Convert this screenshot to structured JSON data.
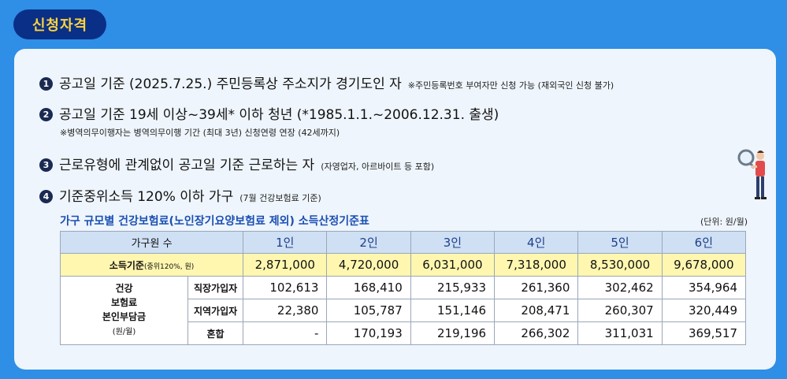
{
  "badge": "신청자격",
  "conditions": [
    {
      "num": "1",
      "text": "공고일 기준 (2025.7.25.) 주민등록상 주소지가 경기도인 자",
      "note": "※주민등록번호 부여자만 신청 가능 (재외국인 신청 불가)"
    },
    {
      "num": "2",
      "text": "공고일 기준 19세 이상~39세* 이하 청년 (*1985.1.1.~2006.12.31. 출생)",
      "subnote": "※병역의무이행자는 병역의무이행 기간 (최대 3년) 신청연령 연장 (42세까지)"
    },
    {
      "num": "3",
      "text": "근로유형에 관계없이 공고일 기준 근로하는 자",
      "note": "(자영업자, 아르바이트 등 포함)"
    },
    {
      "num": "4",
      "text": "기준중위소득 120% 이하 가구",
      "note": "(7월 건강보험료 기준)"
    }
  ],
  "table": {
    "caption": "가구 규모별 건강보험료(노인장기요양보험료 제외) 소득산정기준표",
    "unit": "(단위: 원/월)",
    "header_label": "가구원 수",
    "columns": [
      "1인",
      "2인",
      "3인",
      "4인",
      "5인",
      "6인"
    ],
    "income_label": "소득기준",
    "income_label_small": "(중위120%, 원)",
    "income_values": [
      "2,871,000",
      "4,720,000",
      "6,031,000",
      "7,318,000",
      "8,530,000",
      "9,678,000"
    ],
    "group_label": {
      "l1": "건강",
      "l2": "보험료",
      "l3": "본인부담금",
      "l4": "(원/월)"
    },
    "rows": [
      {
        "label": "직장가입자",
        "values": [
          "102,613",
          "168,410",
          "215,933",
          "261,360",
          "302,462",
          "354,964"
        ]
      },
      {
        "label": "지역가입자",
        "values": [
          "22,380",
          "105,787",
          "151,146",
          "208,471",
          "260,307",
          "320,449"
        ]
      },
      {
        "label": "혼합",
        "values": [
          "-",
          "170,193",
          "219,196",
          "266,302",
          "311,031",
          "369,517"
        ]
      }
    ]
  },
  "colors": {
    "background": "#2f8ee6",
    "badge_bg": "#0a2f87",
    "badge_text": "#ffd43b",
    "income_row": "#fff7b0",
    "header_row": "#cfe0f5"
  },
  "icons": {
    "person": "person-with-magnifier-icon"
  }
}
